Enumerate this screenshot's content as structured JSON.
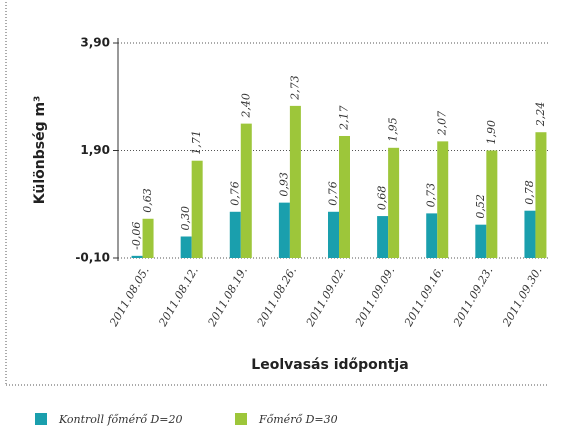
{
  "chart_data": {
    "type": "bar",
    "x_label": "Leolvasás időpontja",
    "y_label": "Különbség m³",
    "categories": [
      "2011.08.05.",
      "2011.08.12.",
      "2011.08.19.",
      "2011.08.26.",
      "2011.09.02.",
      "2011.09.09.",
      "2011.09.16.",
      "2011.09.23.",
      "2011.09.30."
    ],
    "series": [
      {
        "name": "Kontroll főmérő D=20",
        "color": "#1a9fad",
        "values": [
          -0.06,
          0.3,
          0.76,
          0.93,
          0.76,
          0.68,
          0.73,
          0.52,
          0.78
        ],
        "value_labels": [
          "-0,06",
          "0,30",
          "0,76",
          "0,93",
          "0,76",
          "0,68",
          "0,73",
          "0,52",
          "0,78"
        ]
      },
      {
        "name": "Főmérő D=30",
        "color": "#9dc63a",
        "values": [
          0.63,
          1.71,
          2.4,
          2.73,
          2.17,
          1.95,
          2.07,
          1.9,
          2.24
        ],
        "value_labels": [
          "0,63",
          "1,71",
          "2,40",
          "2,73",
          "2,17",
          "1,95",
          "2,07",
          "1,90",
          "2,24"
        ]
      }
    ],
    "ylim": [
      -0.1,
      3.9
    ],
    "yticks": [
      {
        "value": -0.1,
        "label": "-0,10"
      },
      {
        "value": 1.9,
        "label": "1,90"
      },
      {
        "value": 3.9,
        "label": "3,90"
      }
    ],
    "grid": true,
    "legend": "bottom"
  }
}
